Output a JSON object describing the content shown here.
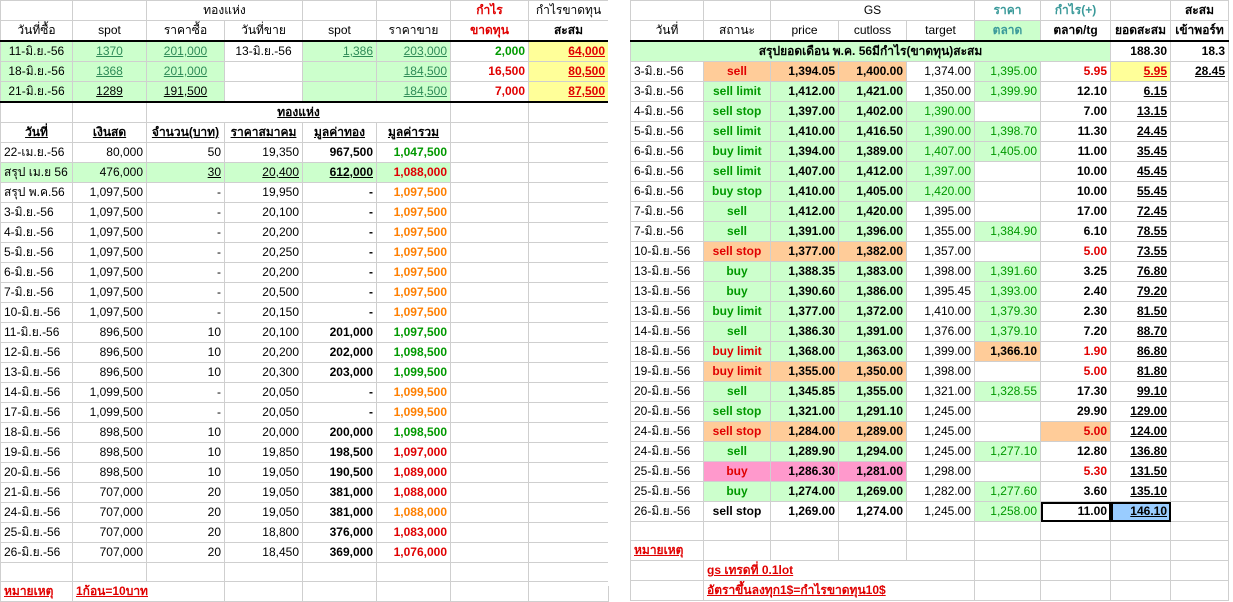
{
  "left": {
    "row1": [
      "",
      "",
      "",
      "ทองแห่ง",
      "",
      "",
      "",
      "กำไร",
      "กำไรขาดทุน"
    ],
    "header": [
      "วันที่ซื้อ",
      "spot",
      "ราคาซื้อ",
      "วันที่ขาย",
      "spot",
      "ราคาขาย",
      "ขาดทุน",
      "สะสม"
    ],
    "trades": [
      [
        "11-มิ.ย.-56",
        "1370",
        "201,000",
        "13-มิ.ย.-56",
        "1,386",
        "203,000",
        "2,000",
        "64,000"
      ],
      [
        "18-มิ.ย.-56",
        "1368",
        "201,000",
        "",
        "",
        "184,500",
        "16,500",
        "80,500"
      ],
      [
        "21-มิ.ย.-56",
        "1289",
        "191,500",
        "",
        "",
        "184,500",
        "7,000",
        "87,500"
      ]
    ],
    "bar_title": "ทองแห่ง",
    "table_header": [
      "วันที่",
      "เงินสด",
      "จำนวน(บาท)",
      "ราคาสมาคม",
      "มูลค่าทอง",
      "มูลค่ารวม"
    ],
    "rows": [
      [
        "22-เม.ย.-56",
        "80,000",
        "50",
        "19,350",
        "967,500",
        "1,047,500"
      ],
      [
        "สรุป เม.ย 56",
        "476,000",
        "30",
        "20,400",
        "612,000",
        "1,088,000"
      ],
      [
        "สรุป พ.ค.56",
        "1,097,500",
        "-",
        "19,950",
        "-",
        "1,097,500"
      ],
      [
        "3-มิ.ย.-56",
        "1,097,500",
        "-",
        "20,100",
        "-",
        "1,097,500"
      ],
      [
        "4-มิ.ย.-56",
        "1,097,500",
        "-",
        "20,200",
        "-",
        "1,097,500"
      ],
      [
        "5-มิ.ย.-56",
        "1,097,500",
        "-",
        "20,250",
        "-",
        "1,097,500"
      ],
      [
        "6-มิ.ย.-56",
        "1,097,500",
        "-",
        "20,200",
        "-",
        "1,097,500"
      ],
      [
        "7-มิ.ย.-56",
        "1,097,500",
        "-",
        "20,500",
        "-",
        "1,097,500"
      ],
      [
        "10-มิ.ย.-56",
        "1,097,500",
        "-",
        "20,150",
        "-",
        "1,097,500"
      ],
      [
        "11-มิ.ย.-56",
        "896,500",
        "10",
        "20,100",
        "201,000",
        "1,097,500"
      ],
      [
        "12-มิ.ย.-56",
        "896,500",
        "10",
        "20,200",
        "202,000",
        "1,098,500"
      ],
      [
        "13-มิ.ย.-56",
        "896,500",
        "10",
        "20,300",
        "203,000",
        "1,099,500"
      ],
      [
        "14-มิ.ย.-56",
        "1,099,500",
        "-",
        "20,050",
        "-",
        "1,099,500"
      ],
      [
        "17-มิ.ย.-56",
        "1,099,500",
        "-",
        "20,050",
        "-",
        "1,099,500"
      ],
      [
        "18-มิ.ย.-56",
        "898,500",
        "10",
        "20,000",
        "200,000",
        "1,098,500"
      ],
      [
        "19-มิ.ย.-56",
        "898,500",
        "10",
        "19,850",
        "198,500",
        "1,097,000"
      ],
      [
        "20-มิ.ย.-56",
        "898,500",
        "10",
        "19,050",
        "190,500",
        "1,089,000"
      ],
      [
        "21-มิ.ย.-56",
        "707,000",
        "20",
        "19,050",
        "381,000",
        "1,088,000"
      ],
      [
        "24-มิ.ย.-56",
        "707,000",
        "20",
        "19,050",
        "381,000",
        "1,088,000"
      ],
      [
        "25-มิ.ย.-56",
        "707,000",
        "20",
        "18,800",
        "376,000",
        "1,083,000"
      ],
      [
        "26-มิ.ย.-56",
        "707,000",
        "20",
        "18,450",
        "369,000",
        "1,076,000"
      ]
    ],
    "note_label": "หมายเหตุ",
    "note_text": "1ก้อน=10บาท"
  },
  "right": {
    "row1": [
      "",
      "",
      "GS",
      "",
      "",
      "ราคา",
      "กำไร(+)",
      "",
      "สะสม"
    ],
    "header": [
      "วันที่",
      "สถานะ",
      "price",
      "cutloss",
      "target",
      "ตลาด",
      "ตลาด/tg",
      "ยอดสะสม",
      "เข้าพอร์ท"
    ],
    "summary_label": "สรุปยอดเดือน พ.ค. 56มีกำไร(ขาดทุน)สะสม",
    "summary_total": "188.30",
    "summary_port": "18.3",
    "rows": [
      [
        "3-มิ.ย.-56",
        "sell",
        "1,394.05",
        "1,400.00",
        "1,374.00",
        "1,395.00",
        "5.95",
        "5.95",
        "28.45"
      ],
      [
        "3-มิ.ย.-56",
        "sell limit",
        "1,412.00",
        "1,421.00",
        "1,350.00",
        "1,399.90",
        "12.10",
        "6.15",
        ""
      ],
      [
        "4-มิ.ย.-56",
        "sell stop",
        "1,397.00",
        "1,402.00",
        "1,390.00",
        "",
        "7.00",
        "13.15",
        ""
      ],
      [
        "5-มิ.ย.-56",
        "sell limit",
        "1,410.00",
        "1,416.50",
        "1,390.00",
        "1,398.70",
        "11.30",
        "24.45",
        ""
      ],
      [
        "6-มิ.ย.-56",
        "buy limit",
        "1,394.00",
        "1,389.00",
        "1,407.00",
        "1,405.00",
        "11.00",
        "35.45",
        ""
      ],
      [
        "6-มิ.ย.-56",
        "sell limit",
        "1,407.00",
        "1,412.00",
        "1,397.00",
        "",
        "10.00",
        "45.45",
        ""
      ],
      [
        "6-มิ.ย.-56",
        "buy stop",
        "1,410.00",
        "1,405.00",
        "1,420.00",
        "",
        "10.00",
        "55.45",
        ""
      ],
      [
        "7-มิ.ย.-56",
        "sell",
        "1,412.00",
        "1,420.00",
        "1,395.00",
        "",
        "17.00",
        "72.45",
        ""
      ],
      [
        "7-มิ.ย.-56",
        "sell",
        "1,391.00",
        "1,396.00",
        "1,355.00",
        "1,384.90",
        "6.10",
        "78.55",
        ""
      ],
      [
        "10-มิ.ย.-56",
        "sell stop",
        "1,377.00",
        "1,382.00",
        "1,357.00",
        "",
        "5.00",
        "73.55",
        ""
      ],
      [
        "13-มิ.ย.-56",
        "buy",
        "1,388.35",
        "1,383.00",
        "1,398.00",
        "1,391.60",
        "3.25",
        "76.80",
        ""
      ],
      [
        "13-มิ.ย.-56",
        "buy",
        "1,390.60",
        "1,386.00",
        "1,395.45",
        "1,393.00",
        "2.40",
        "79.20",
        ""
      ],
      [
        "13-มิ.ย.-56",
        "buy limit",
        "1,377.00",
        "1,372.00",
        "1,410.00",
        "1,379.30",
        "2.30",
        "81.50",
        ""
      ],
      [
        "14-มิ.ย.-56",
        "sell",
        "1,386.30",
        "1,391.00",
        "1,376.00",
        "1,379.10",
        "7.20",
        "88.70",
        ""
      ],
      [
        "18-มิ.ย.-56",
        "buy limit",
        "1,368.00",
        "1,363.00",
        "1,399.00",
        "1,366.10",
        "1.90",
        "86.80",
        ""
      ],
      [
        "19-มิ.ย.-56",
        "buy limit",
        "1,355.00",
        "1,350.00",
        "1,398.00",
        "",
        "5.00",
        "81.80",
        ""
      ],
      [
        "20-มิ.ย.-56",
        "sell",
        "1,345.85",
        "1,355.00",
        "1,321.00",
        "1,328.55",
        "17.30",
        "99.10",
        ""
      ],
      [
        "20-มิ.ย.-56",
        "sell stop",
        "1,321.00",
        "1,291.10",
        "1,245.00",
        "",
        "29.90",
        "129.00",
        ""
      ],
      [
        "24-มิ.ย.-56",
        "sell stop",
        "1,284.00",
        "1,289.00",
        "1,245.00",
        "",
        "5.00",
        "124.00",
        ""
      ],
      [
        "24-มิ.ย.-56",
        "sell",
        "1,289.90",
        "1,294.00",
        "1,245.00",
        "1,277.10",
        "12.80",
        "136.80",
        ""
      ],
      [
        "25-มิ.ย.-56",
        "buy",
        "1,286.30",
        "1,281.00",
        "1,298.00",
        "",
        "5.30",
        "131.50",
        ""
      ],
      [
        "25-มิ.ย.-56",
        "buy",
        "1,274.00",
        "1,269.00",
        "1,282.00",
        "1,277.60",
        "3.60",
        "135.10",
        ""
      ],
      [
        "26-มิ.ย.-56",
        "sell stop",
        "1,269.00",
        "1,274.00",
        "1,245.00",
        "1,258.00",
        "11.00",
        "146.10",
        ""
      ]
    ],
    "note_label": "หมายเหตุ",
    "note1": "gs เทรดที่ 0.1lot",
    "note2": "อัตราขึ้นลงทุก1$=กำไรขาดทุน10$"
  }
}
